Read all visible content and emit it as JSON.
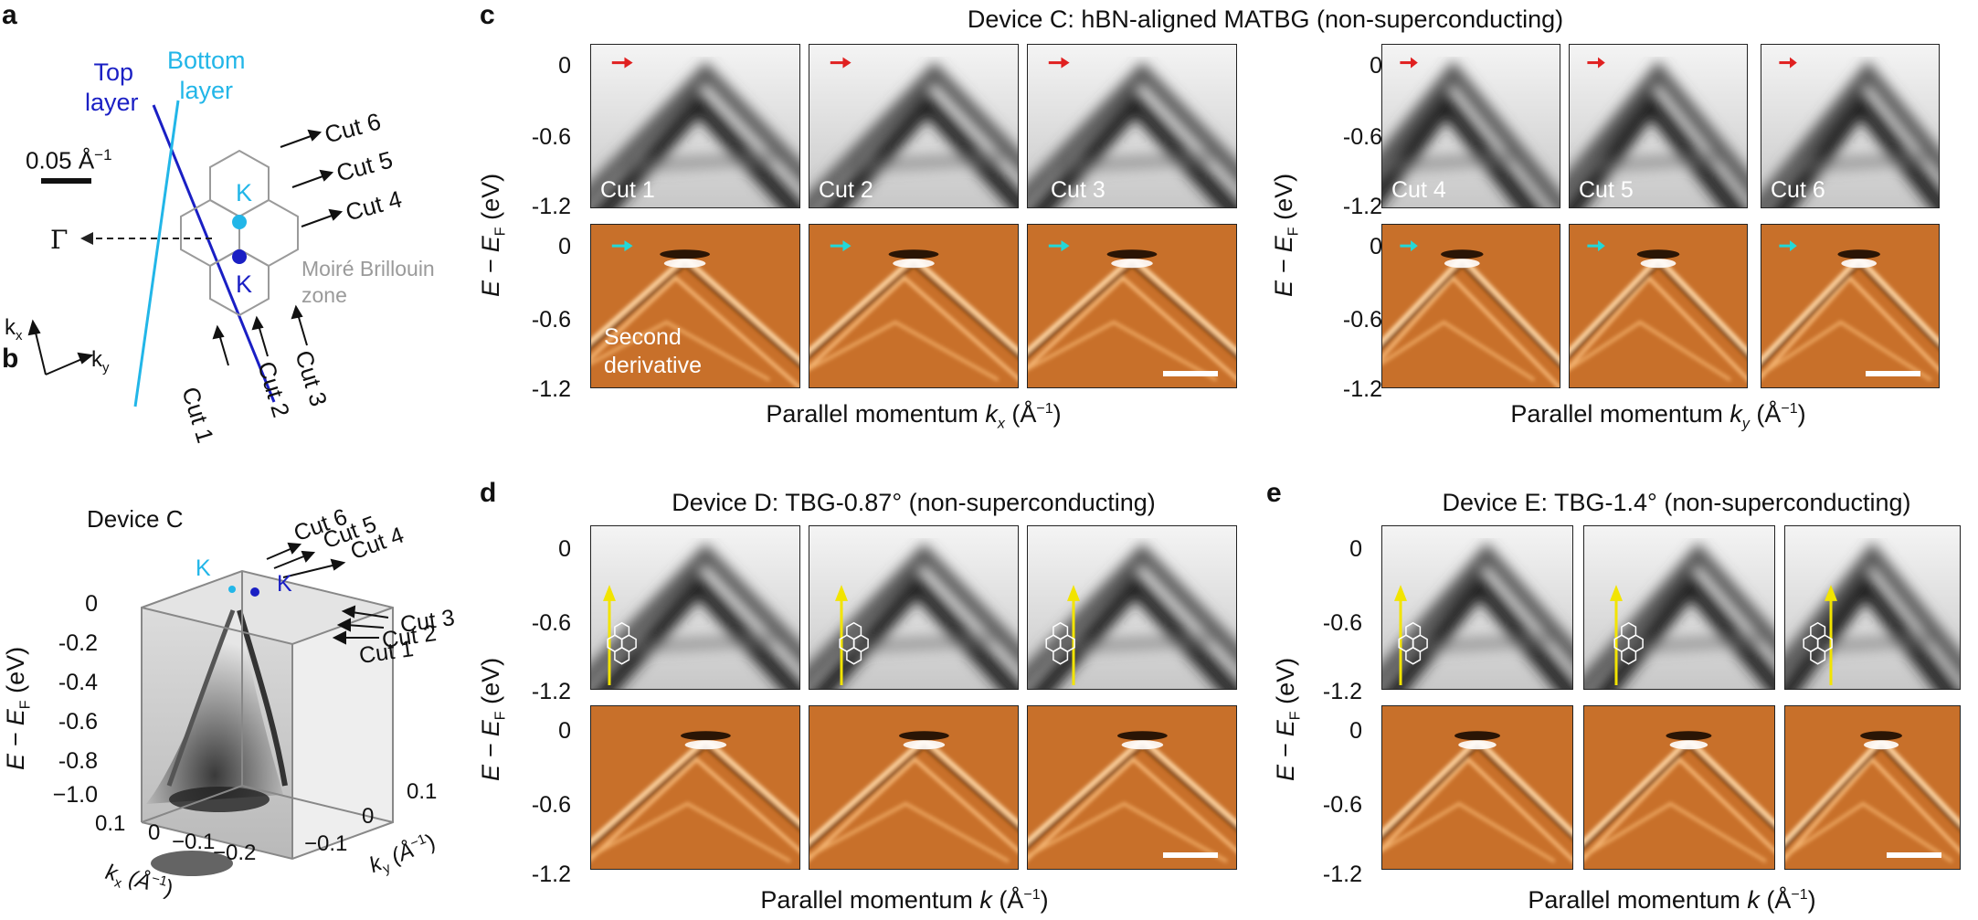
{
  "panel_labels": {
    "a": "a",
    "b": "b",
    "c": "c",
    "d": "d",
    "e": "e"
  },
  "panel_a": {
    "top_layer": [
      "Top",
      "layer"
    ],
    "bottom_layer": [
      "Bottom",
      "layer"
    ],
    "scale": "0.05 Å",
    "scale_sup": "−1",
    "K_top": "K",
    "K_bottom": "K",
    "gamma": "Γ",
    "moire": [
      "Moiré Brillouin",
      "zone"
    ],
    "cuts_right": [
      "Cut 6",
      "Cut 5",
      "Cut 4"
    ],
    "cuts_bottom": [
      "Cut 1",
      "Cut 2",
      "Cut 3"
    ],
    "kx": "k",
    "kx_sub": "x",
    "ky": "k",
    "ky_sub": "y",
    "colors": {
      "top": "#1a1fc4",
      "bottom": "#22b6e8",
      "moire": "#9a9a9a"
    }
  },
  "panel_b": {
    "title": "Device C",
    "K_left": "K",
    "K_right": "K",
    "cuts_top": [
      "Cut 6",
      "Cut 5",
      "Cut 4"
    ],
    "cuts_side": [
      "Cut 3",
      "Cut 2",
      "Cut 1"
    ],
    "y_ticks": [
      "0",
      "-0.2",
      "-0.4",
      "-0.6",
      "-0.8",
      "−1.0"
    ],
    "kx_ticks": [
      "0.1",
      "0",
      "−0.1",
      "−0.2"
    ],
    "ky_ticks": [
      "0.1",
      "0",
      "−0.1"
    ],
    "ylabel": "E − E",
    "ylabel_sub": "F",
    "ylabel_unit": "(eV)",
    "kx_label": "k",
    "kx_sub": "x",
    "kx_unit": "(Å",
    "kx_unit_sup": "−1",
    "kx_unit_end": ")",
    "ky_label": "k",
    "ky_sub": "y",
    "ky_unit": "(Å",
    "ky_unit_sup": "−1",
    "ky_unit_end": ")"
  },
  "panel_c": {
    "title": "Device C: hBN-aligned MATBG (non-superconducting)",
    "cuts": [
      "Cut 1",
      "Cut 2",
      "Cut 3",
      "Cut 4",
      "Cut 5",
      "Cut 6"
    ],
    "second_derivative": [
      "Second",
      "derivative"
    ],
    "y_ticks": [
      "0",
      "-0.6",
      "-1.2"
    ],
    "y_ticks_lower": [
      "0",
      "-0.6",
      "-1.2"
    ],
    "ylabel": "E − E",
    "ylabel_sub": "F",
    "ylabel_unit": "(eV)",
    "xlabel_left": "Parallel momentum ",
    "xlabel_left_k": "k",
    "xlabel_left_sub": "x",
    "xlabel_left_unit": " (Å",
    "xlabel_left_sup": "−1",
    "xlabel_left_end": ")",
    "xlabel_right": "Parallel momentum ",
    "xlabel_right_k": "k",
    "xlabel_right_sub": "y",
    "xlabel_right_unit": " (Å",
    "xlabel_right_sup": "−1",
    "xlabel_right_end": ")",
    "arrow_color_top": "#e02020",
    "arrow_color_bottom": "#22d8d8"
  },
  "panel_d": {
    "title": "Device D: TBG-0.87° (non-superconducting)",
    "y_ticks": [
      "0",
      "-0.6",
      "-1.2"
    ],
    "y_ticks_lower": [
      "0",
      "-0.6",
      "-1.2"
    ],
    "ylabel": "E − E",
    "ylabel_sub": "F",
    "ylabel_unit": "(eV)",
    "xlabel": "Parallel momentum ",
    "xlabel_k": "k",
    "xlabel_unit": " (Å",
    "xlabel_sup": "−1",
    "xlabel_end": ")"
  },
  "panel_e": {
    "title": "Device E: TBG-1.4° (non-superconducting)",
    "y_ticks": [
      "0",
      "-0.6",
      "-1.2"
    ],
    "y_ticks_lower": [
      "0",
      "-0.6",
      "-1.2"
    ],
    "ylabel": "E − E",
    "ylabel_sub": "F",
    "ylabel_unit": "(eV)",
    "xlabel": "Parallel momentum ",
    "xlabel_k": "k",
    "xlabel_unit": " (Å",
    "xlabel_sup": "−1",
    "xlabel_end": ")"
  },
  "colors": {
    "orange": "#c8702a",
    "yellow_arrow": "#f2e400"
  }
}
